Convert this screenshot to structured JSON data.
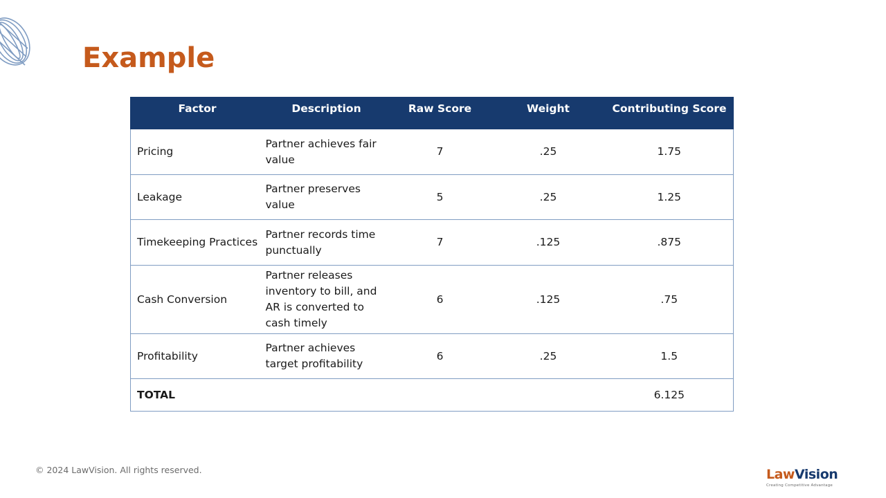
{
  "slide": {
    "title": "Example"
  },
  "table": {
    "headers": [
      "Factor",
      "Description",
      "Raw Score",
      "Weight",
      "Contributing Score"
    ],
    "rows": [
      {
        "factor": "Pricing",
        "description": "Partner achieves fair value",
        "raw_score": "7",
        "weight": ".25",
        "contributing_score": "1.75"
      },
      {
        "factor": "Leakage",
        "description": "Partner preserves value",
        "raw_score": "5",
        "weight": ".25",
        "contributing_score": "1.25"
      },
      {
        "factor": "Timekeeping Practices",
        "description": "Partner records time punctually",
        "raw_score": "7",
        "weight": ".125",
        "contributing_score": ".875"
      },
      {
        "factor": "Cash Conversion",
        "description": "Partner releases inventory to bill, and AR is converted to cash timely",
        "raw_score": "6",
        "weight": ".125",
        "contributing_score": ".75"
      },
      {
        "factor": "Profitability",
        "description": "Partner achieves target profitability",
        "raw_score": "6",
        "weight": ".25",
        "contributing_score": "1.5"
      }
    ],
    "total": {
      "label": "TOTAL",
      "contributing_score": "6.125"
    }
  },
  "footer": {
    "copyright": "© 2024 LawVision. All rights reserved."
  },
  "logo": {
    "law": "Law",
    "vision": "Vision",
    "tagline": "Creating Competitive Advantage"
  },
  "colors": {
    "title": "#c55a1c",
    "header_bg": "#173a6e",
    "border": "#7f9cc2"
  },
  "icons": {
    "decoration": "globe-icon"
  }
}
